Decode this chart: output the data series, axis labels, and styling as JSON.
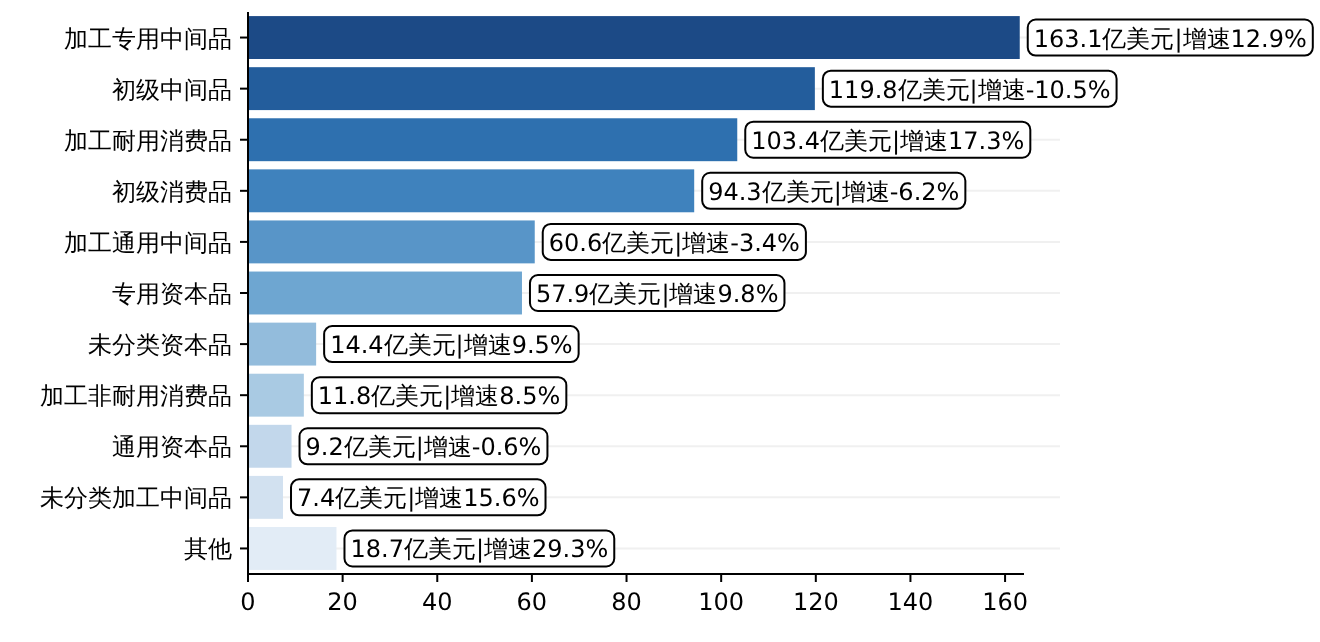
{
  "chart_data": {
    "type": "bar",
    "orientation": "horizontal",
    "categories": [
      "加工专用中间品",
      "初级中间品",
      "加工耐用消费品",
      "初级消费品",
      "加工通用中间品",
      "专用资本品",
      "未分类资本品",
      "加工非耐用消费品",
      "通用资本品",
      "未分类加工中间品",
      "其他"
    ],
    "values": [
      163.1,
      119.8,
      103.4,
      94.3,
      60.6,
      57.9,
      14.4,
      11.8,
      9.2,
      7.4,
      18.7
    ],
    "colors": [
      "#1c4a86",
      "#235d9c",
      "#2e70af",
      "#3f82bd",
      "#5895c8",
      "#6ea6d1",
      "#93bcdc",
      "#a9cae3",
      "#c2d7eb",
      "#d2e1f0",
      "#e2ecf6"
    ],
    "value_labels": [
      "163.1亿美元|增速12.9%",
      "119.8亿美元|增速-10.5%",
      "103.4亿美元|增速17.3%",
      "94.3亿美元|增速-6.2%",
      "60.6亿美元|增速-3.4%",
      "57.9亿美元|增速9.8%",
      "14.4亿美元|增速9.5%",
      "11.8亿美元|增速8.5%",
      "9.2亿美元|增速-0.6%",
      "7.4亿美元|增速15.6%",
      "18.7亿美元|增速29.3%"
    ],
    "xlim": [
      0,
      164
    ],
    "xticks": [
      0,
      20,
      40,
      60,
      80,
      100,
      120,
      140,
      160
    ],
    "grid": "y"
  }
}
